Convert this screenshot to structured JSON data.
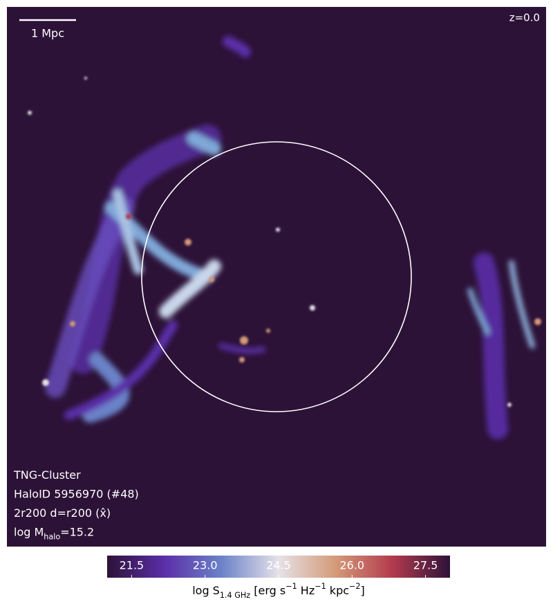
{
  "chart_data": {
    "type": "image",
    "background": "#2d1238",
    "annotations": {
      "scale_bar": "1 Mpc",
      "redshift": "z=0.0",
      "lines": [
        [
          {
            "text": "TNG-Cluster"
          }
        ],
        [
          {
            "text": "HaloID 5956970 (#48)"
          }
        ],
        [
          {
            "text": "2r200 d=r200 (x̂)"
          }
        ],
        [
          {
            "text": "log M"
          },
          {
            "text": "halo",
            "shift": "sub"
          },
          {
            "text": "=15.2"
          }
        ]
      ]
    },
    "colorbar": {
      "lim": [
        21,
        28
      ],
      "ticks": [
        21.5,
        {
          "value": 23,
          "label": "23.0"
        },
        24.5,
        {
          "value": 26,
          "label": "26.0"
        },
        27.5
      ],
      "colormap": [
        "#2d1238",
        "#5b2ea8",
        "#6b82c8",
        "#e6e1e8",
        "#d49a78",
        "#b33a4e",
        "#2d1238"
      ],
      "label": [
        {
          "text": "log S"
        },
        {
          "text": "1.4 GHz",
          "shift": "sub"
        },
        {
          "text": " [erg s"
        },
        {
          "text": "−1",
          "shift": "super"
        },
        {
          "text": " Hz"
        },
        {
          "text": "−1",
          "shift": "super"
        },
        {
          "text": " kpc"
        },
        {
          "text": "−2",
          "shift": "super"
        },
        {
          "text": "]"
        }
      ]
    }
  }
}
